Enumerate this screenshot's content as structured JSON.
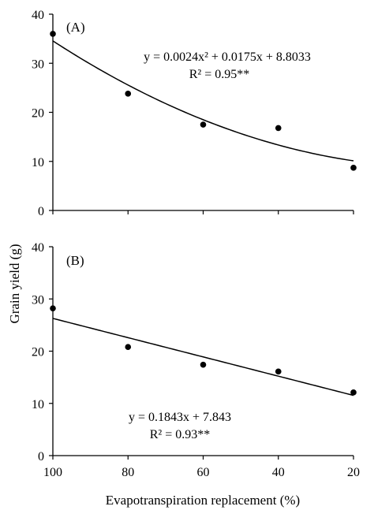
{
  "chart_data": [
    {
      "type": "scatter",
      "panel_label": "(A)",
      "x": [
        100,
        80,
        60,
        40,
        20
      ],
      "y": [
        36.0,
        23.8,
        17.5,
        16.8,
        8.7
      ],
      "xlim": [
        100,
        20
      ],
      "ylim": [
        0,
        40
      ],
      "xticks": [
        100,
        80,
        60,
        40,
        20
      ],
      "yticks": [
        0,
        10,
        20,
        30,
        40
      ],
      "fit": {
        "kind": "quadratic",
        "coefficients": [
          0.0024,
          0.0175,
          8.8033
        ]
      },
      "equation": "y = 0.0024x² + 0.0175x + 8.8033",
      "r2": "R² = 0.95**"
    },
    {
      "type": "scatter",
      "panel_label": "(B)",
      "x": [
        100,
        80,
        60,
        40,
        20
      ],
      "y": [
        28.2,
        20.8,
        17.4,
        16.1,
        12.1
      ],
      "xlim": [
        100,
        20
      ],
      "ylim": [
        0,
        40
      ],
      "xticks": [
        100,
        80,
        60,
        40,
        20
      ],
      "yticks": [
        0,
        10,
        20,
        30,
        40
      ],
      "fit": {
        "kind": "linear",
        "coefficients": [
          0.1843,
          7.843
        ]
      },
      "equation": "y = 0.1843x + 7.843",
      "r2": "R² = 0.93**"
    }
  ],
  "ylabel": "Grain yield (g)",
  "xlabel": "Evapotranspiration replacement (%)"
}
